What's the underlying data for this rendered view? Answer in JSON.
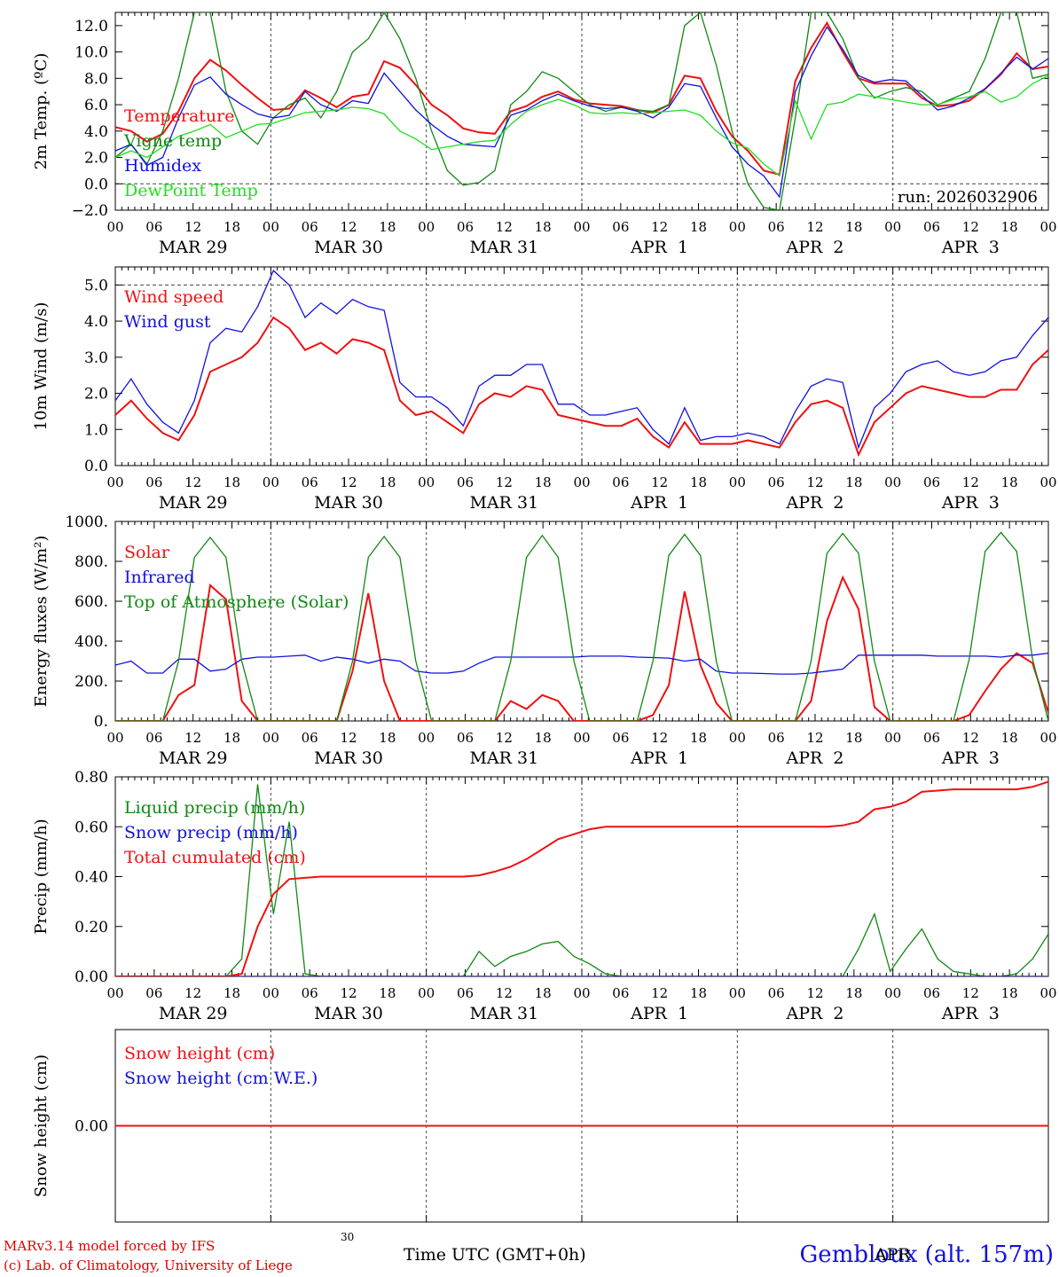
{
  "footer": {
    "credit_line1": "MARv3.14 model forced by IFS",
    "credit_line2": "(c) Lab. of Climatology, University of Liege",
    "x_title": "Time UTC (GMT+0h)",
    "site": "Gembloux (alt. 157m)",
    "stray_tick_30": "30",
    "stray_tick_apr": "APR"
  },
  "colors": {
    "red": "#ee1111",
    "green": "#118811",
    "blue": "#1111dd",
    "lime": "#22dd22",
    "grid": "#444444"
  },
  "chart_data": [
    {
      "type": "line",
      "id": "temp",
      "ylabel": "2m Temp. (ºC)",
      "ylim": [
        -2.0,
        13.0
      ],
      "yticks": [
        -2.0,
        0.0,
        2.0,
        4.0,
        6.0,
        8.0,
        10.0,
        12.0
      ],
      "ytick_labels": [
        "−2.0",
        "0.0",
        "2.0",
        "4.0",
        "6.0",
        "8.0",
        "10.0",
        "12.0"
      ],
      "hline": 0.0,
      "x_tick_labels": [
        "00",
        "06",
        "12",
        "18",
        "00",
        "06",
        "12",
        "18",
        "00",
        "06",
        "12",
        "18",
        "00",
        "06",
        "12",
        "18",
        "00",
        "06",
        "12",
        "18",
        "00",
        "06",
        "12",
        "18",
        "00"
      ],
      "day_labels": [
        "MAR 29",
        "MAR 30",
        "MAR 31",
        "APR  1",
        "APR  2",
        "APR  3"
      ],
      "annotation": "run: 2026032906",
      "x_start_hour": 0,
      "x_step_hours": 3,
      "series": [
        {
          "name": "Temperature",
          "color": "red",
          "values": [
            4.3,
            4.0,
            3.2,
            3.8,
            5.5,
            8.0,
            9.4,
            8.6,
            7.5,
            6.5,
            5.6,
            5.7,
            7.1,
            6.5,
            5.8,
            6.6,
            6.8,
            9.3,
            8.8,
            7.5,
            6.0,
            5.2,
            4.2,
            3.9,
            3.8,
            5.5,
            5.9,
            6.6,
            7.0,
            6.4,
            6.1,
            6.0,
            5.9,
            5.6,
            5.4,
            6.0,
            8.2,
            8.0,
            5.5,
            3.6,
            2.5,
            1.0,
            0.7,
            7.8,
            10.3,
            12.2,
            10.0,
            8.0,
            7.6,
            7.6,
            7.6,
            6.5,
            5.9,
            6.0,
            6.3,
            7.2,
            8.3,
            9.9,
            8.7,
            8.9
          ]
        },
        {
          "name": "Vigne temp",
          "color": "green",
          "values": [
            2.0,
            3.0,
            1.5,
            4.0,
            8.0,
            13.0,
            13.0,
            7.0,
            4.0,
            3.0,
            5.0,
            6.0,
            6.5,
            5.0,
            7.0,
            10.0,
            11.0,
            13.0,
            11.0,
            8.0,
            4.0,
            1.0,
            -0.1,
            0.1,
            1.0,
            6.0,
            7.0,
            8.5,
            8.0,
            7.0,
            6.0,
            5.5,
            5.8,
            5.6,
            5.5,
            6.0,
            12.0,
            13.0,
            9.0,
            4.0,
            0.0,
            -1.8,
            -2.0,
            5.0,
            13.0,
            13.0,
            11.0,
            8.0,
            6.5,
            7.0,
            7.3,
            7.0,
            6.0,
            6.5,
            7.0,
            9.5,
            13.0,
            13.0,
            8.0,
            8.3
          ]
        },
        {
          "name": "Humidex",
          "color": "blue",
          "values": [
            2.5,
            3.0,
            1.4,
            2.0,
            5.0,
            7.5,
            8.1,
            6.8,
            6.0,
            5.3,
            5.0,
            5.2,
            7.0,
            6.0,
            5.5,
            6.3,
            6.1,
            8.4,
            7.0,
            5.6,
            4.5,
            3.6,
            3.0,
            2.9,
            2.8,
            5.2,
            5.6,
            6.3,
            6.8,
            6.3,
            5.9,
            5.7,
            5.8,
            5.5,
            5.0,
            5.8,
            7.6,
            7.4,
            5.0,
            2.8,
            1.5,
            0.6,
            -1.0,
            7.0,
            9.7,
            11.9,
            10.2,
            8.2,
            7.7,
            7.9,
            7.8,
            6.7,
            5.6,
            5.9,
            6.5,
            7.2,
            8.4,
            9.6,
            8.7,
            9.5
          ]
        },
        {
          "name": "DewPoint Temp",
          "color": "lime",
          "values": [
            2.0,
            2.5,
            2.0,
            2.8,
            3.6,
            4.0,
            4.5,
            3.5,
            4.0,
            4.5,
            4.6,
            5.0,
            5.4,
            5.5,
            5.6,
            5.8,
            5.7,
            5.3,
            4.0,
            3.4,
            2.6,
            2.8,
            3.0,
            3.2,
            3.3,
            4.5,
            5.5,
            6.0,
            6.4,
            6.0,
            5.4,
            5.3,
            5.4,
            5.3,
            5.4,
            5.5,
            5.6,
            5.2,
            4.0,
            3.1,
            2.7,
            1.5,
            0.6,
            6.3,
            3.4,
            6.0,
            6.2,
            6.8,
            6.6,
            6.4,
            6.2,
            6.0,
            6.0,
            6.4,
            6.6,
            7.0,
            6.2,
            6.6,
            7.6,
            8.2
          ]
        }
      ]
    },
    {
      "type": "line",
      "id": "wind",
      "ylabel": "10m Wind (m/s)",
      "ylim": [
        0.0,
        5.5
      ],
      "yticks": [
        0.0,
        1.0,
        2.0,
        3.0,
        4.0,
        5.0
      ],
      "ytick_labels": [
        "0.0",
        "1.0",
        "2.0",
        "3.0",
        "4.0",
        "5.0"
      ],
      "hline": 5.0,
      "x_tick_labels": [
        "00",
        "06",
        "12",
        "18",
        "00",
        "06",
        "12",
        "18",
        "00",
        "06",
        "12",
        "18",
        "00",
        "06",
        "12",
        "18",
        "00",
        "06",
        "12",
        "18",
        "00",
        "06",
        "12",
        "18",
        "00"
      ],
      "day_labels": [
        "MAR 29",
        "MAR 30",
        "MAR 31",
        "APR  1",
        "APR  2",
        "APR  3"
      ],
      "x_start_hour": 0,
      "x_step_hours": 3,
      "series": [
        {
          "name": "Wind speed",
          "color": "red",
          "values": [
            1.4,
            1.8,
            1.3,
            0.9,
            0.7,
            1.4,
            2.6,
            2.8,
            3.0,
            3.4,
            4.1,
            3.8,
            3.2,
            3.4,
            3.1,
            3.5,
            3.4,
            3.2,
            1.8,
            1.4,
            1.5,
            1.2,
            0.9,
            1.7,
            2.0,
            1.9,
            2.2,
            2.1,
            1.4,
            1.3,
            1.2,
            1.1,
            1.1,
            1.3,
            0.8,
            0.5,
            1.2,
            0.6,
            0.6,
            0.6,
            0.7,
            0.6,
            0.5,
            1.2,
            1.7,
            1.8,
            1.6,
            0.3,
            1.2,
            1.6,
            2.0,
            2.2,
            2.1,
            2.0,
            1.9,
            1.9,
            2.1,
            2.1,
            2.8,
            3.2
          ]
        },
        {
          "name": "Wind gust",
          "color": "blue",
          "values": [
            1.8,
            2.4,
            1.7,
            1.2,
            0.9,
            1.8,
            3.4,
            3.8,
            3.7,
            4.4,
            5.4,
            5.0,
            4.1,
            4.5,
            4.2,
            4.6,
            4.4,
            4.3,
            2.3,
            1.9,
            1.9,
            1.6,
            1.1,
            2.2,
            2.5,
            2.5,
            2.8,
            2.8,
            1.7,
            1.7,
            1.4,
            1.4,
            1.5,
            1.6,
            1.0,
            0.6,
            1.6,
            0.7,
            0.8,
            0.8,
            0.9,
            0.8,
            0.6,
            1.5,
            2.2,
            2.4,
            2.3,
            0.5,
            1.6,
            2.0,
            2.6,
            2.8,
            2.9,
            2.6,
            2.5,
            2.6,
            2.9,
            3.0,
            3.6,
            4.1
          ]
        }
      ]
    },
    {
      "type": "line",
      "id": "energy",
      "ylabel": "Energy fluxes (W/m²)",
      "ylim": [
        0,
        1000
      ],
      "yticks": [
        0,
        200,
        400,
        600,
        800,
        1000
      ],
      "ytick_labels": [
        "0.",
        "200.",
        "400.",
        "600.",
        "800.",
        "1000."
      ],
      "x_tick_labels": [
        "00",
        "06",
        "12",
        "18",
        "00",
        "06",
        "12",
        "18",
        "00",
        "06",
        "12",
        "18",
        "00",
        "06",
        "12",
        "18",
        "00",
        "06",
        "12",
        "18",
        "00",
        "06",
        "12",
        "18",
        "00"
      ],
      "day_labels": [
        "MAR 29",
        "MAR 30",
        "MAR 31",
        "APR  1",
        "APR  2",
        "APR  3"
      ],
      "x_start_hour": 0,
      "x_step_hours": 3,
      "series": [
        {
          "name": "Solar",
          "color": "red",
          "values": [
            0,
            0,
            0,
            0,
            130,
            180,
            680,
            610,
            100,
            0,
            0,
            0,
            0,
            0,
            0,
            250,
            640,
            200,
            0,
            0,
            0,
            0,
            0,
            0,
            0,
            100,
            60,
            130,
            100,
            0,
            0,
            0,
            0,
            0,
            30,
            180,
            650,
            280,
            90,
            0,
            0,
            0,
            0,
            0,
            100,
            500,
            720,
            560,
            70,
            0,
            0,
            0,
            0,
            0,
            30,
            150,
            260,
            340,
            290,
            40
          ]
        },
        {
          "name": "Infrared",
          "color": "blue",
          "values": [
            280,
            300,
            240,
            240,
            310,
            310,
            250,
            260,
            310,
            320,
            320,
            325,
            330,
            300,
            320,
            310,
            290,
            310,
            300,
            250,
            240,
            240,
            250,
            290,
            320,
            320,
            320,
            320,
            320,
            320,
            325,
            325,
            325,
            320,
            318,
            315,
            300,
            310,
            250,
            240,
            240,
            238,
            235,
            235,
            240,
            250,
            260,
            330,
            330,
            330,
            330,
            330,
            325,
            325,
            325,
            325,
            320,
            330,
            330,
            340
          ]
        },
        {
          "name": "Top of Atmosphere (Solar)",
          "color": "green",
          "values": [
            0,
            0,
            0,
            0,
            300,
            820,
            920,
            820,
            300,
            0,
            0,
            0,
            0,
            0,
            0,
            300,
            820,
            925,
            820,
            300,
            0,
            0,
            0,
            0,
            0,
            300,
            820,
            930,
            820,
            300,
            0,
            0,
            0,
            0,
            300,
            830,
            935,
            830,
            300,
            0,
            0,
            0,
            0,
            0,
            300,
            840,
            940,
            840,
            300,
            0,
            0,
            0,
            0,
            0,
            310,
            850,
            945,
            850,
            310,
            0
          ]
        }
      ]
    },
    {
      "type": "line",
      "id": "precip",
      "ylabel": "Precip (mm/h)",
      "ylim": [
        0.0,
        0.8
      ],
      "yticks": [
        0.0,
        0.2,
        0.4,
        0.6,
        0.8
      ],
      "ytick_labels": [
        "0.00",
        "0.20",
        "0.40",
        "0.60",
        "0.80"
      ],
      "x_tick_labels": [
        "00",
        "06",
        "12",
        "18",
        "00",
        "06",
        "12",
        "18",
        "00",
        "06",
        "12",
        "18",
        "00",
        "06",
        "12",
        "18",
        "00",
        "06",
        "12",
        "18",
        "00",
        "06",
        "12",
        "18",
        "00"
      ],
      "day_labels": [
        "MAR 29",
        "MAR 30",
        "MAR 31",
        "APR  1",
        "APR  2",
        "APR  3"
      ],
      "x_start_hour": 0,
      "x_step_hours": 3,
      "series": [
        {
          "name": "Liquid precip (mm/h)",
          "color": "green",
          "values": [
            0,
            0,
            0,
            0,
            0,
            0,
            0,
            0,
            0.07,
            0.77,
            0.25,
            0.62,
            0.01,
            0,
            0,
            0,
            0,
            0,
            0,
            0,
            0,
            0,
            0,
            0.1,
            0.04,
            0.08,
            0.1,
            0.13,
            0.14,
            0.08,
            0.05,
            0.01,
            0,
            0,
            0,
            0,
            0,
            0,
            0,
            0,
            0,
            0,
            0,
            0,
            0,
            0,
            0,
            0.11,
            0.25,
            0.02,
            0.11,
            0.19,
            0.07,
            0.02,
            0.01,
            0,
            0,
            0.01,
            0.07,
            0.17
          ]
        },
        {
          "name": "Snow precip (mm/h)",
          "color": "blue",
          "values": [
            0,
            0,
            0,
            0,
            0,
            0,
            0,
            0,
            0,
            0,
            0,
            0,
            0,
            0,
            0,
            0,
            0,
            0,
            0,
            0,
            0,
            0,
            0,
            0,
            0,
            0,
            0,
            0,
            0,
            0,
            0,
            0,
            0,
            0,
            0,
            0,
            0,
            0,
            0,
            0,
            0,
            0,
            0,
            0,
            0,
            0,
            0,
            0,
            0,
            0,
            0,
            0,
            0,
            0,
            0,
            0,
            0,
            0,
            0,
            0
          ]
        },
        {
          "name": "Total cumulated (cm)",
          "color": "red",
          "values": [
            0,
            0,
            0,
            0,
            0,
            0,
            0,
            0,
            0.01,
            0.2,
            0.33,
            0.39,
            0.395,
            0.4,
            0.4,
            0.4,
            0.4,
            0.4,
            0.4,
            0.4,
            0.4,
            0.4,
            0.4,
            0.405,
            0.42,
            0.44,
            0.47,
            0.51,
            0.55,
            0.57,
            0.59,
            0.6,
            0.6,
            0.6,
            0.6,
            0.6,
            0.6,
            0.6,
            0.6,
            0.6,
            0.6,
            0.6,
            0.6,
            0.6,
            0.6,
            0.6,
            0.605,
            0.62,
            0.67,
            0.68,
            0.7,
            0.74,
            0.745,
            0.75,
            0.75,
            0.75,
            0.75,
            0.75,
            0.76,
            0.78
          ]
        }
      ]
    },
    {
      "type": "line",
      "id": "snow",
      "ylabel": "Snow height (cm)",
      "ylim": [
        -1.0,
        1.0
      ],
      "yticks": [
        0.0
      ],
      "ytick_labels": [
        "0.00"
      ],
      "x_tick_labels": [],
      "day_labels": [],
      "x_start_hour": 0,
      "x_step_hours": 3,
      "series": [
        {
          "name": "Snow height (cm)",
          "color": "red",
          "values": [
            0,
            0,
            0,
            0,
            0,
            0,
            0,
            0,
            0,
            0,
            0,
            0,
            0,
            0,
            0,
            0,
            0,
            0,
            0,
            0,
            0,
            0,
            0,
            0,
            0,
            0,
            0,
            0,
            0,
            0,
            0,
            0,
            0,
            0,
            0,
            0,
            0,
            0,
            0,
            0,
            0,
            0,
            0,
            0,
            0,
            0,
            0,
            0,
            0,
            0,
            0,
            0,
            0,
            0,
            0,
            0,
            0,
            0,
            0,
            0
          ]
        },
        {
          "name": "Snow height (cm W.E.)",
          "color": "blue",
          "values": []
        }
      ]
    }
  ]
}
